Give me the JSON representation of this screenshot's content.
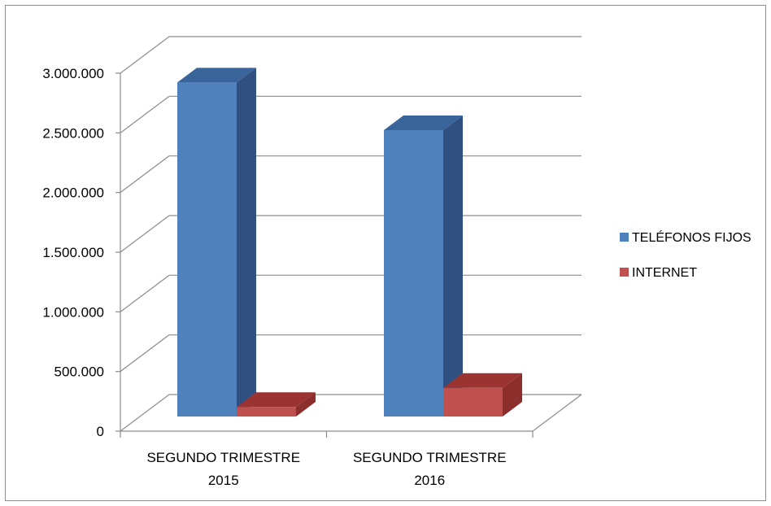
{
  "chart_data": {
    "type": "bar",
    "title": "",
    "xlabel": "",
    "ylabel": "",
    "ylim": [
      0,
      3000000
    ],
    "yticks": [
      0,
      500000,
      1000000,
      1500000,
      2000000,
      2500000,
      3000000
    ],
    "ytick_labels": [
      "0",
      "500.000",
      "1.000.000",
      "1.500.000",
      "2.000.000",
      "2.500.000",
      "3.000.000"
    ],
    "categories": [
      [
        "SEGUNDO  TRIMESTRE",
        "2015"
      ],
      [
        "SEGUNDO TRIMESTRE",
        "2016"
      ]
    ],
    "series": [
      {
        "name": "TELÉFONOS FIJOS",
        "values": [
          2800000,
          2400000
        ],
        "color": "#4F81BD",
        "top_color": "#3A659A",
        "side_color": "#2F5080"
      },
      {
        "name": "INTERNET",
        "values": [
          80000,
          240000
        ],
        "color": "#C0504D",
        "top_color": "#9B3431",
        "side_color": "#8B2E2C"
      }
    ],
    "grid": true,
    "legend_position": "right",
    "style": "3d-column"
  }
}
